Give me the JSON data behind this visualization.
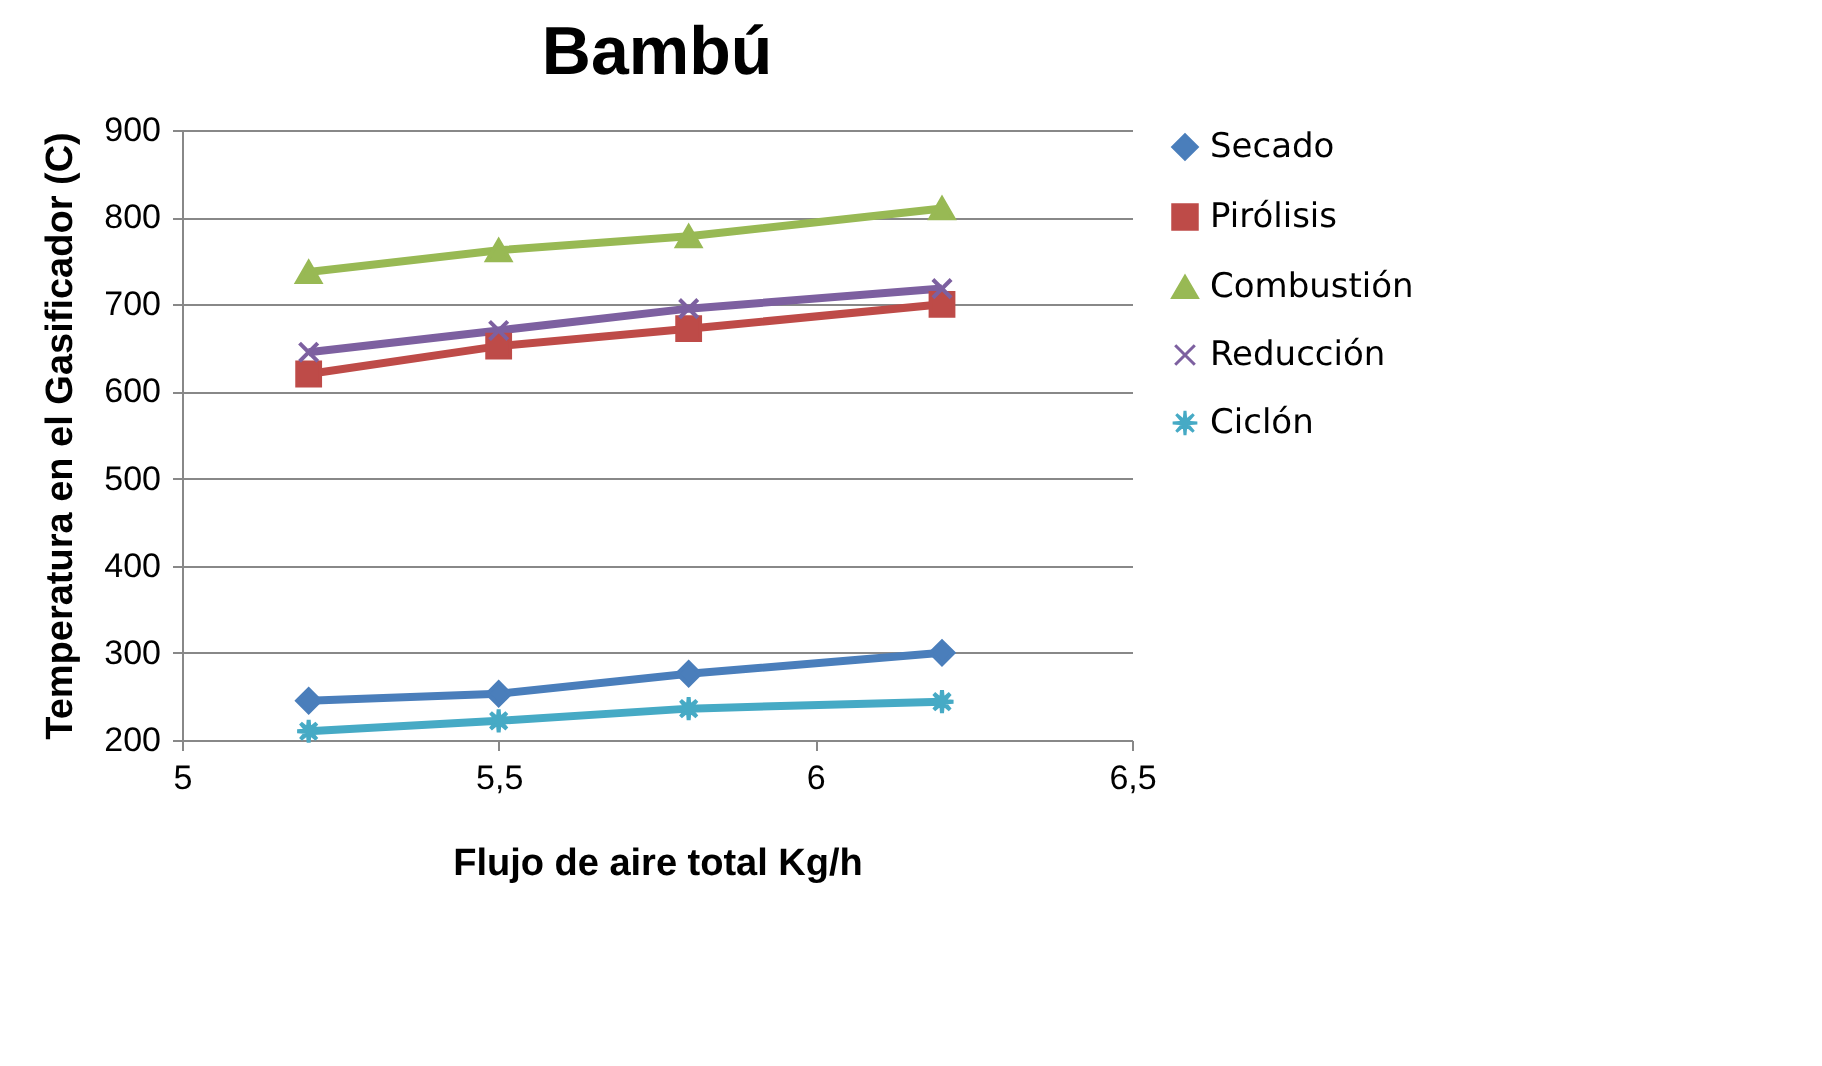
{
  "chart_data": {
    "type": "line",
    "title": "Bambú",
    "xlabel": "Flujo de aire total Kg/h",
    "ylabel": "Temperatura en el Gasificador (C)",
    "x": [
      5.2,
      5.5,
      5.8,
      6.2
    ],
    "series": [
      {
        "name": "Secado",
        "color": "#4a7ebb",
        "marker": "diamond",
        "values": [
          245,
          253,
          276,
          300
        ]
      },
      {
        "name": "Pirólisis",
        "color": "#be4b48",
        "marker": "square",
        "values": [
          620,
          652,
          672,
          700
        ]
      },
      {
        "name": "Combustión",
        "color": "#98b954",
        "marker": "triangle",
        "values": [
          737,
          762,
          778,
          810
        ]
      },
      {
        "name": "Reducción",
        "color": "#7d60a0",
        "marker": "cross",
        "values": [
          645,
          670,
          695,
          718
        ]
      },
      {
        "name": "Ciclón",
        "color": "#46aac5",
        "marker": "star",
        "values": [
          210,
          222,
          236,
          244
        ]
      }
    ],
    "xlim": [
      5,
      6.5
    ],
    "xticks": [
      5,
      {
        "value": 5.5,
        "label": "5,5"
      },
      6,
      {
        "value": 6.5,
        "label": "6,5"
      }
    ],
    "ylim": [
      200,
      900
    ],
    "yticks": [
      200,
      300,
      400,
      500,
      600,
      700,
      800,
      900
    ],
    "grid": "y",
    "legend": "right"
  }
}
